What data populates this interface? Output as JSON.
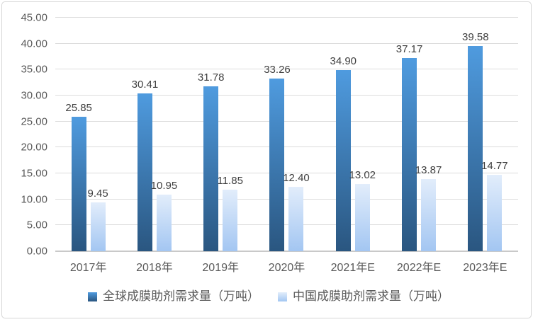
{
  "chart_data": {
    "type": "bar",
    "title": "",
    "xlabel": "",
    "ylabel": "",
    "categories": [
      "2017年",
      "2018年",
      "2019年",
      "2020年",
      "2021年E",
      "2022年E",
      "2023年E"
    ],
    "series": [
      {
        "name": "全球成膜助剂需求量（万吨）",
        "values": [
          25.85,
          30.41,
          31.78,
          33.26,
          34.9,
          37.17,
          39.58
        ],
        "color_top": "#4f9bdf",
        "color_bottom": "#2a5680"
      },
      {
        "name": "中国成膜助剂需求量（万吨）",
        "values": [
          9.45,
          10.95,
          11.85,
          12.4,
          13.02,
          13.87,
          14.77
        ],
        "color_top": "#e2edfb",
        "color_bottom": "#a3c6f2"
      }
    ],
    "ylim": [
      0,
      45
    ],
    "ytick_step": 5,
    "ytick_labels": [
      "0.00",
      "5.00",
      "10.00",
      "15.00",
      "20.00",
      "25.00",
      "30.00",
      "35.00",
      "40.00",
      "45.00"
    ],
    "grid": true,
    "legend_position": "bottom",
    "value_labels_shown": true,
    "value_label_decimals": 2
  },
  "colors": {
    "gridline": "#dcdcdc",
    "axis_line": "#c9c9c9",
    "tick_label": "#595959",
    "value_label": "#3f3f3f",
    "frame_border": "#d6d6d6",
    "background": "#ffffff"
  }
}
